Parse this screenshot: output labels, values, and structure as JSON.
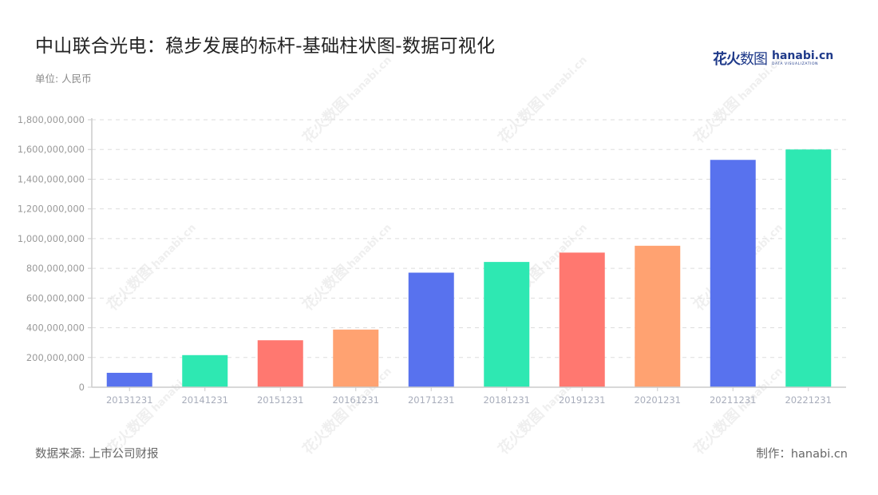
{
  "header": {
    "title": "中山联合光电：稳步发展的标杆-基础柱状图-数据可视化",
    "unit": "单位: 人民币"
  },
  "logo": {
    "cn_bold": "花火",
    "cn_thin": "数图",
    "en": "hanabi.cn",
    "en_sub": "DATA VISUALIZATION"
  },
  "footer": {
    "source": "数据来源: 上市公司财报",
    "credit": "制作：hanabi.cn"
  },
  "watermark": {
    "cn": "花火数图",
    "en": "hanabi.cn"
  },
  "colors": {
    "blue": "#5872EE",
    "green": "#2EE8B2",
    "red": "#FF7870",
    "orange": "#FFA271",
    "grid": "#dddddd",
    "axis": "#cccccc",
    "tick_label": "#999999",
    "x_label": "#a8adbb"
  },
  "chart_data": {
    "type": "bar",
    "title": "中山联合光电：稳步发展的标杆-基础柱状图-数据可视化",
    "xlabel": "",
    "ylabel": "单位: 人民币",
    "categories": [
      "20131231",
      "20141231",
      "20151231",
      "20161231",
      "20171231",
      "20181231",
      "20191231",
      "20201231",
      "20211231",
      "20221231"
    ],
    "values": [
      97000000,
      216000000,
      316000000,
      388000000,
      771000000,
      843000000,
      906000000,
      952000000,
      1530000000,
      1600000000
    ],
    "bar_colors": [
      "#5872EE",
      "#2EE8B2",
      "#FF7870",
      "#FFA271",
      "#5872EE",
      "#2EE8B2",
      "#FF7870",
      "#FFA271",
      "#5872EE",
      "#2EE8B2"
    ],
    "ylim": [
      0,
      1800000000
    ],
    "yticks": [
      0,
      200000000,
      400000000,
      600000000,
      800000000,
      1000000000,
      1200000000,
      1400000000,
      1600000000,
      1800000000
    ],
    "ytick_labels": [
      "0",
      "200,000,000",
      "400,000,000",
      "600,000,000",
      "800,000,000",
      "1,000,000,000",
      "1,200,000,000",
      "1,400,000,000",
      "1,600,000,000",
      "1,800,000,000"
    ],
    "grid": true,
    "grid_style": "dashed",
    "legend": "none"
  }
}
